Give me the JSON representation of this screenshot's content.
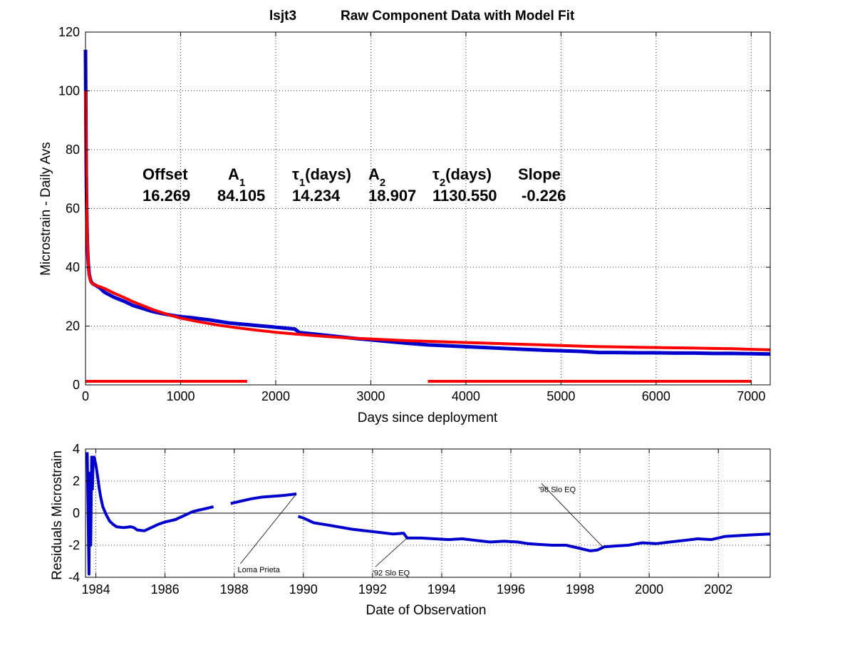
{
  "title": {
    "station": "lsjt3",
    "text": "Raw Component Data with Model Fit"
  },
  "params": {
    "header": {
      "offset": "Offset",
      "a1": "A",
      "a1_sub": "1",
      "tau1": "τ",
      "tau1_sub": "1",
      "tau1_unit": "(days)",
      "a2": "A",
      "a2_sub": "2",
      "tau2": "τ",
      "tau2_sub": "2",
      "tau2_unit": "(days)",
      "slope": "Slope"
    },
    "values": {
      "offset": "16.269",
      "a1": "84.105",
      "tau1": "14.234",
      "a2": "18.907",
      "tau2": "1130.550",
      "slope": "-0.226"
    }
  },
  "annotations": {
    "loma": "Loma Prieta",
    "slo92": "'92 Slo EQ",
    "slo98": "'98 Slo EQ"
  },
  "chart_data": [
    {
      "type": "line",
      "xlabel": "Days since deployment",
      "ylabel": "Microstrain - Daily Avs",
      "xlim": [
        0,
        7200
      ],
      "ylim": [
        0,
        120
      ],
      "xticks": [
        0,
        1000,
        2000,
        3000,
        4000,
        5000,
        6000,
        7000
      ],
      "yticks": [
        0,
        20,
        40,
        60,
        80,
        100,
        120
      ],
      "grid": true,
      "series": [
        {
          "color": "#0000cc",
          "x": [
            0,
            2,
            5,
            8,
            12,
            16,
            20,
            25,
            30,
            40,
            50,
            60,
            80,
            100,
            150,
            200,
            300,
            400,
            500,
            600,
            700,
            800,
            900,
            1000,
            1100,
            1200,
            1300,
            1400,
            1500,
            1600,
            1800,
            2000,
            2200,
            2250,
            2400,
            2600,
            2800,
            3000,
            3200,
            3400,
            3600,
            3800,
            4000,
            4200,
            4400,
            4600,
            4800,
            5000,
            5200,
            5400,
            5600,
            5800,
            6000,
            6200,
            6400,
            6600,
            6800,
            7000,
            7200
          ],
          "y": [
            114,
            100,
            85,
            72,
            62,
            54,
            48,
            44,
            41,
            37.5,
            36,
            35,
            34.3,
            34,
            33,
            31.5,
            29.8,
            28.5,
            27,
            26,
            25,
            24.3,
            23.7,
            23.2,
            22.9,
            22.5,
            22.1,
            21.6,
            21.1,
            20.8,
            20.2,
            19.6,
            19.0,
            17.8,
            17.3,
            16.6,
            15.9,
            15.3,
            14.7,
            14.1,
            13.6,
            13.3,
            13.0,
            12.7,
            12.4,
            12.1,
            11.8,
            11.6,
            11.4,
            11.0,
            11.0,
            10.9,
            10.9,
            10.8,
            10.8,
            10.7,
            10.7,
            10.6,
            10.5
          ]
        },
        {
          "color": "#ff0000",
          "x": [
            0,
            2,
            5,
            8,
            12,
            16,
            20,
            25,
            30,
            40,
            50,
            60,
            80,
            100,
            150,
            200,
            300,
            400,
            500,
            600,
            700,
            800,
            900,
            1000,
            1200,
            1400,
            1600,
            1800,
            2000,
            2200,
            2400,
            2600,
            2800,
            3000,
            3200,
            3400,
            3600,
            3800,
            4000,
            4200,
            4400,
            4600,
            4800,
            5000,
            5200,
            5400,
            5600,
            5800,
            6000,
            6200,
            6400,
            6600,
            6800,
            7000,
            7200
          ],
          "y": [
            100,
            92,
            82,
            72,
            63,
            55,
            49,
            44,
            40.5,
            37.2,
            35.5,
            34.8,
            34.3,
            34.0,
            33.4,
            32.8,
            31.2,
            29.8,
            28.3,
            27.0,
            25.7,
            24.6,
            23.6,
            22.7,
            21.4,
            20.3,
            19.4,
            18.6,
            17.9,
            17.3,
            16.8,
            16.3,
            15.9,
            15.6,
            15.3,
            15.0,
            14.8,
            14.6,
            14.4,
            14.2,
            14.0,
            13.8,
            13.6,
            13.4,
            13.2,
            13.0,
            12.9,
            12.8,
            12.7,
            12.6,
            12.5,
            12.4,
            12.3,
            12.1,
            11.9
          ]
        }
      ],
      "flat_segments": [
        {
          "color": "#ff0000",
          "x": [
            0,
            1700
          ],
          "y": 1.2
        },
        {
          "color": "#ff0000",
          "x": [
            3600,
            7000
          ],
          "y": 1.2
        }
      ]
    },
    {
      "type": "line",
      "xlabel": "Date of Observation",
      "ylabel": "Residuals Microstrain",
      "xlim": [
        1983.7,
        2003.5
      ],
      "ylim": [
        -4,
        4
      ],
      "xticks": [
        1984,
        1986,
        1988,
        1990,
        1992,
        1994,
        1996,
        1998,
        2000,
        2002
      ],
      "yticks": [
        -4,
        -2,
        0,
        2,
        4
      ],
      "grid": true,
      "zero_line": true,
      "series": [
        {
          "color": "#0000cc",
          "segments": [
            {
              "x": [
                1983.75,
                1983.8,
                1983.82,
                1983.85,
                1983.88,
                1983.9,
                1983.92,
                1983.95,
                1984.0,
                1984.05,
                1984.1,
                1984.15,
                1984.2,
                1984.3,
                1984.4,
                1984.5,
                1984.6,
                1984.8,
                1985.0,
                1985.1,
                1985.2,
                1985.4,
                1985.6,
                1985.8,
                1986.0,
                1986.3,
                1986.6,
                1986.8,
                1987.0,
                1987.2,
                1987.4
              ],
              "y": [
                3.8,
                -3.8,
                2.5,
                -2.0,
                3.5,
                1.5,
                3.2,
                3.5,
                3.0,
                2.3,
                1.5,
                0.9,
                0.4,
                -0.1,
                -0.5,
                -0.7,
                -0.85,
                -0.9,
                -0.85,
                -0.9,
                -1.05,
                -1.1,
                -0.9,
                -0.7,
                -0.55,
                -0.4,
                -0.1,
                0.1,
                0.2,
                0.3,
                0.4
              ]
            },
            {
              "x": [
                1987.9,
                1988.2,
                1988.5,
                1988.8,
                1989.1,
                1989.4,
                1989.8
              ],
              "y": [
                0.6,
                0.75,
                0.9,
                1.0,
                1.05,
                1.1,
                1.2
              ]
            },
            {
              "x": [
                1989.85,
                1990.0,
                1990.3,
                1990.6,
                1991.0,
                1991.4,
                1991.8,
                1992.2,
                1992.6,
                1992.9,
                1993.0,
                1993.4,
                1993.8,
                1994.2,
                1994.6,
                1995.0,
                1995.4,
                1995.8,
                1996.2,
                1996.5,
                1996.8,
                1997.2,
                1997.6,
                1998.0,
                1998.3,
                1998.5,
                1998.7,
                1999.0,
                1999.4,
                1999.8,
                2000.2,
                2000.6,
                2001.0,
                2001.4,
                2001.8,
                2002.2,
                2002.6,
                2003.0,
                2003.5
              ],
              "y": [
                -0.2,
                -0.3,
                -0.6,
                -0.7,
                -0.85,
                -1.0,
                -1.1,
                -1.2,
                -1.3,
                -1.25,
                -1.55,
                -1.55,
                -1.6,
                -1.65,
                -1.6,
                -1.7,
                -1.8,
                -1.75,
                -1.8,
                -1.9,
                -1.95,
                -2.0,
                -2.0,
                -2.2,
                -2.35,
                -2.3,
                -2.1,
                -2.05,
                -2.0,
                -1.85,
                -1.9,
                -1.8,
                -1.7,
                -1.6,
                -1.65,
                -1.45,
                -1.4,
                -1.35,
                -1.3
              ]
            }
          ]
        }
      ],
      "annotations": [
        {
          "key": "loma",
          "x": 1989.8,
          "y": 1.2,
          "text_x": 1988.1,
          "text_y": -3.5
        },
        {
          "key": "slo92",
          "x": 1993.0,
          "y": -1.55,
          "text_x": 1992.0,
          "text_y": -3.7
        },
        {
          "key": "slo98",
          "x": 1998.7,
          "y": -2.2,
          "text_x": 1996.8,
          "text_y": 1.5
        }
      ]
    }
  ]
}
